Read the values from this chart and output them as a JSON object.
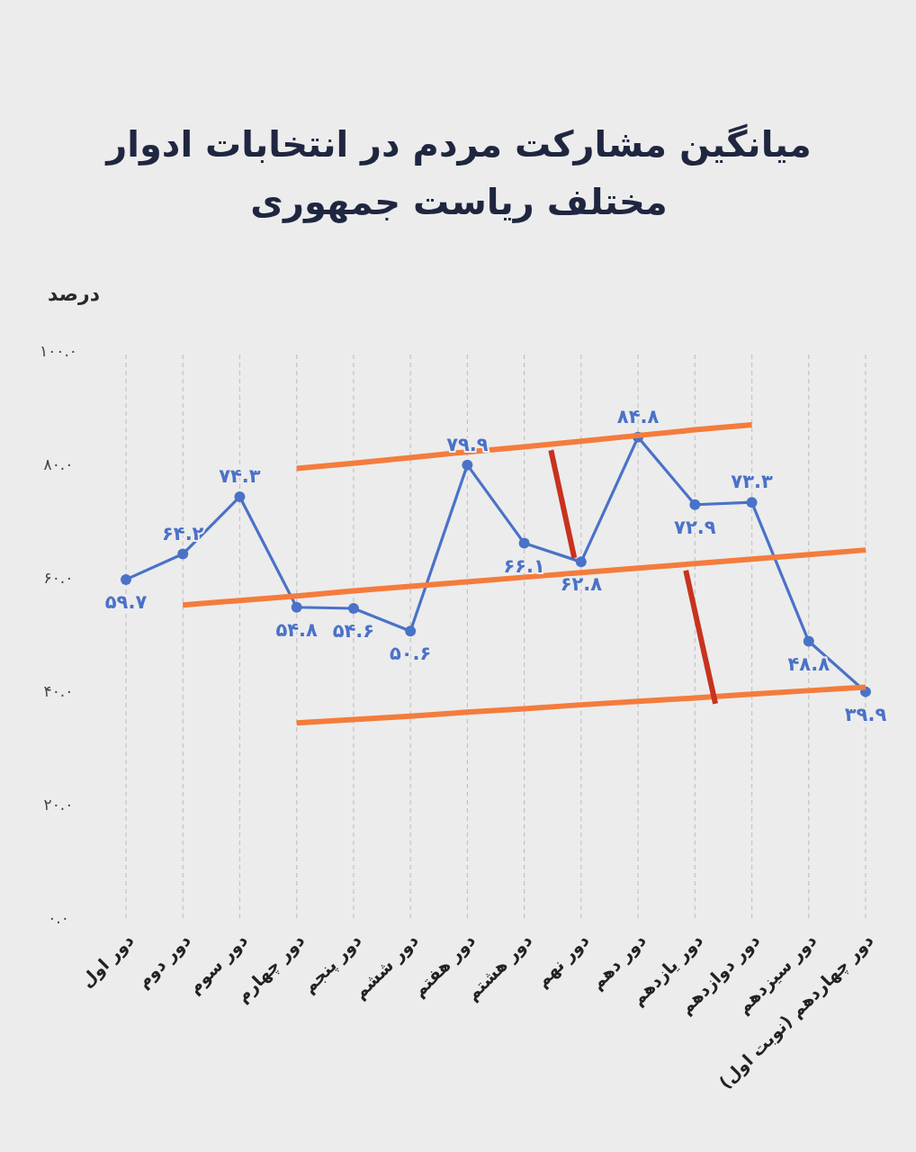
{
  "chart_data": {
    "type": "line",
    "title": "میانگین مشارکت مردم در انتخابات ادوار مختلف ریاست جمهوری",
    "ylabel": "درصد",
    "categories": [
      "دور اول",
      "دور دوم",
      "دور سوم",
      "دور چهارم",
      "دور پنجم",
      "دور ششم",
      "دور هفتم",
      "دور هشتم",
      "دور نهم",
      "دور دهم",
      "دور یازدهم",
      "دور دوازدهم",
      "دور سیزدهم",
      "دور چهاردهم (نوبت اول)"
    ],
    "series": [
      {
        "color": "#4a72c8",
        "values": [
          59.7,
          64.2,
          74.3,
          54.8,
          54.6,
          50.6,
          79.9,
          66.1,
          62.8,
          84.8,
          72.9,
          73.3,
          48.8,
          39.9
        ],
        "value_labels": [
          "۵۹.۷",
          "۶۴.۲",
          "۷۴.۳",
          "۵۴.۸",
          "۵۴.۶",
          "۵۰.۶",
          "۷۹.۹",
          "۶۶.۱",
          "۶۲.۸",
          "۸۴.۸",
          "۷۲.۹",
          "۷۳.۳",
          "۴۸.۸",
          "۳۹.۹"
        ]
      },
      {
        "type": "line",
        "color": "#f47c3c",
        "marker": "none",
        "values": [
          null,
          null,
          null,
          79.3,
          80.2,
          81.2,
          82.2,
          83.1,
          84.1,
          85.1,
          86.1,
          87.0,
          null,
          null
        ]
      },
      {
        "type": "line",
        "color": "#f47c3c",
        "marker": "none",
        "values": [
          null,
          55.2,
          56.0,
          56.8,
          57.7,
          58.5,
          59.3,
          60.1,
          60.9,
          61.7,
          62.5,
          63.3,
          64.1,
          64.9
        ]
      },
      {
        "type": "line",
        "color": "#f47c3c",
        "marker": "none",
        "values": [
          null,
          null,
          null,
          34.4,
          35.0,
          35.6,
          36.3,
          36.9,
          37.6,
          38.2,
          38.8,
          39.5,
          40.1,
          40.7
        ]
      }
    ],
    "ylim": [
      0,
      100
    ],
    "yticks": [
      {
        "value": 0,
        "label": "۰.۰"
      },
      {
        "value": 20,
        "label": "۲۰.۰"
      },
      {
        "value": 40,
        "label": "۴۰.۰"
      },
      {
        "value": 60,
        "label": "۶۰.۰"
      },
      {
        "value": 80,
        "label": "۸۰.۰"
      },
      {
        "value": 100,
        "label": "۱۰۰.۰"
      }
    ],
    "grid": "x",
    "marker": "circle"
  }
}
